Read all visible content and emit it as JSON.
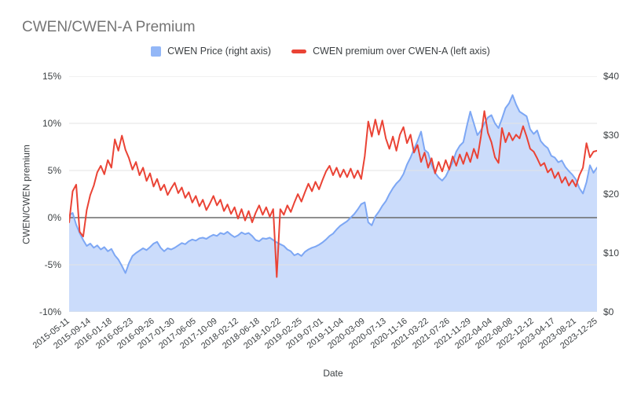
{
  "title": "CWEN/CWEN-A Premium",
  "legend": [
    {
      "label": "CWEN Price (right axis)",
      "type": "area",
      "color": "#93b7f7"
    },
    {
      "label": "CWEN premium over CWEN-A (left axis)",
      "type": "line",
      "color": "#ea4335"
    }
  ],
  "colors": {
    "price_line": "#7da7f4",
    "price_fill": "rgba(125,167,244,0.40)",
    "premium_line": "#ea4335",
    "gridline": "#e3e3e3",
    "zero_line": "#6b6b6b",
    "title_text": "#757575",
    "tick_text": "#3c4043"
  },
  "chart_data": {
    "type": "combo (area + line, dual axis)",
    "title": "CWEN/CWEN-A Premium",
    "x_axis": {
      "title": "Date",
      "tick_labels": [
        "2015-05-11",
        "2015-09-14",
        "2016-01-18",
        "2016-05-23",
        "2016-09-26",
        "2017-01-30",
        "2017-06-05",
        "2017-10-09",
        "2018-02-12",
        "2018-06-18",
        "2018-10-22",
        "2019-02-25",
        "2019-07-01",
        "2019-11-04",
        "2020-03-09",
        "2020-07-13",
        "2020-11-16",
        "2021-03-22",
        "2021-07-26",
        "2021-11-29",
        "2022-04-04",
        "2022-08-08",
        "2022-12-12",
        "2023-04-17",
        "2023-08-21",
        "2023-12-25"
      ]
    },
    "left_axis": {
      "title": "CWEN/CWEN premium",
      "unit": "%",
      "range": [
        -10,
        15
      ],
      "tick_labels": [
        "15%",
        "10%",
        "5%",
        "0%",
        "-5%",
        "-10%"
      ],
      "tick_values": [
        15,
        10,
        5,
        0,
        -5,
        -10
      ]
    },
    "right_axis": {
      "unit": "$",
      "range": [
        0,
        40
      ],
      "tick_labels": [
        "$40",
        "$30",
        "$20",
        "$10",
        "$0"
      ],
      "tick_values": [
        40,
        30,
        20,
        10,
        0
      ]
    },
    "grid": true,
    "legend_position": "top",
    "x_weeks_step": 3,
    "x_weeks_max": 450,
    "x_weeks_start_date": "2015-05-11",
    "series": [
      {
        "name": "CWEN Price (right axis)",
        "axis": "right",
        "type": "area",
        "values": [
          16.4,
          16.8,
          14.8,
          13.4,
          12.2,
          11.2,
          11.6,
          10.9,
          11.3,
          10.6,
          11.0,
          10.3,
          10.7,
          9.6,
          8.9,
          7.8,
          6.6,
          8.3,
          9.5,
          10.0,
          10.4,
          10.8,
          10.5,
          11.0,
          11.6,
          11.9,
          10.9,
          10.3,
          10.8,
          10.6,
          10.9,
          11.3,
          11.7,
          11.5,
          12.0,
          12.3,
          12.1,
          12.5,
          12.6,
          12.4,
          12.8,
          13.1,
          12.9,
          13.4,
          13.2,
          13.6,
          13.1,
          12.7,
          13.0,
          13.5,
          13.2,
          13.4,
          12.9,
          12.2,
          12.0,
          12.5,
          12.4,
          12.6,
          12.2,
          11.8,
          11.5,
          11.2,
          10.6,
          10.3,
          9.6,
          9.9,
          9.5,
          10.2,
          10.6,
          10.9,
          11.1,
          11.4,
          11.8,
          12.3,
          12.9,
          13.3,
          14.0,
          14.6,
          15.0,
          15.4,
          16.0,
          16.6,
          17.4,
          18.3,
          18.6,
          15.2,
          14.7,
          16.2,
          17.0,
          18.0,
          18.8,
          20.0,
          21.0,
          21.8,
          22.4,
          23.4,
          25.0,
          26.2,
          27.6,
          29.0,
          30.6,
          27.5,
          27.0,
          25.0,
          23.6,
          22.8,
          22.3,
          23.0,
          24.2,
          25.4,
          27.2,
          28.2,
          28.8,
          31.5,
          34.0,
          32.0,
          30.0,
          30.8,
          32.0,
          33.0,
          33.4,
          32.0,
          31.2,
          32.8,
          34.6,
          35.4,
          36.8,
          35.2,
          34.0,
          33.6,
          33.2,
          31.0,
          30.2,
          30.8,
          29.0,
          28.3,
          27.8,
          26.5,
          26.2,
          25.4,
          25.7,
          24.6,
          23.9,
          23.3,
          22.5,
          21.0,
          20.1,
          22.0,
          24.9,
          23.6,
          24.5
        ]
      },
      {
        "name": "CWEN premium over CWEN-A (left axis)",
        "axis": "left",
        "type": "line",
        "values": [
          -0.5,
          2.8,
          3.5,
          -1.5,
          -2.0,
          0.8,
          2.4,
          3.4,
          4.8,
          5.5,
          4.6,
          6.1,
          5.3,
          8.3,
          7.1,
          8.7,
          7.2,
          6.3,
          5.1,
          5.9,
          4.5,
          5.3,
          3.9,
          4.7,
          3.3,
          4.1,
          2.9,
          3.5,
          2.4,
          3.1,
          3.7,
          2.6,
          3.2,
          2.1,
          2.7,
          1.6,
          2.3,
          1.2,
          1.9,
          0.8,
          1.5,
          2.3,
          1.3,
          1.9,
          0.7,
          1.4,
          0.4,
          1.1,
          -0.1,
          0.9,
          -0.3,
          0.7,
          -0.5,
          0.5,
          1.3,
          0.3,
          1.1,
          0.1,
          0.9,
          -6.3,
          0.9,
          0.3,
          1.3,
          0.6,
          1.6,
          2.5,
          1.7,
          2.7,
          3.6,
          2.8,
          3.8,
          3.0,
          4.0,
          4.9,
          5.5,
          4.5,
          5.3,
          4.3,
          5.1,
          4.3,
          5.2,
          4.2,
          5.0,
          4.1,
          6.5,
          10.2,
          8.6,
          10.4,
          8.8,
          10.3,
          8.4,
          7.3,
          8.6,
          7.1,
          8.8,
          9.6,
          7.9,
          8.8,
          6.9,
          7.7,
          5.9,
          6.9,
          5.3,
          6.3,
          4.7,
          5.9,
          4.9,
          6.1,
          5.1,
          6.5,
          5.5,
          6.7,
          5.7,
          6.9,
          5.9,
          7.3,
          6.3,
          8.6,
          11.3,
          9.0,
          8.0,
          6.4,
          5.8,
          9.5,
          8.0,
          9.0,
          8.2,
          8.8,
          8.4,
          9.7,
          8.6,
          7.3,
          7.0,
          6.3,
          5.5,
          5.8,
          4.8,
          5.2,
          4.2,
          4.8,
          3.7,
          4.3,
          3.4,
          4.0,
          3.3,
          4.5,
          5.3,
          7.9,
          6.4,
          7.0,
          7.1
        ]
      }
    ]
  }
}
